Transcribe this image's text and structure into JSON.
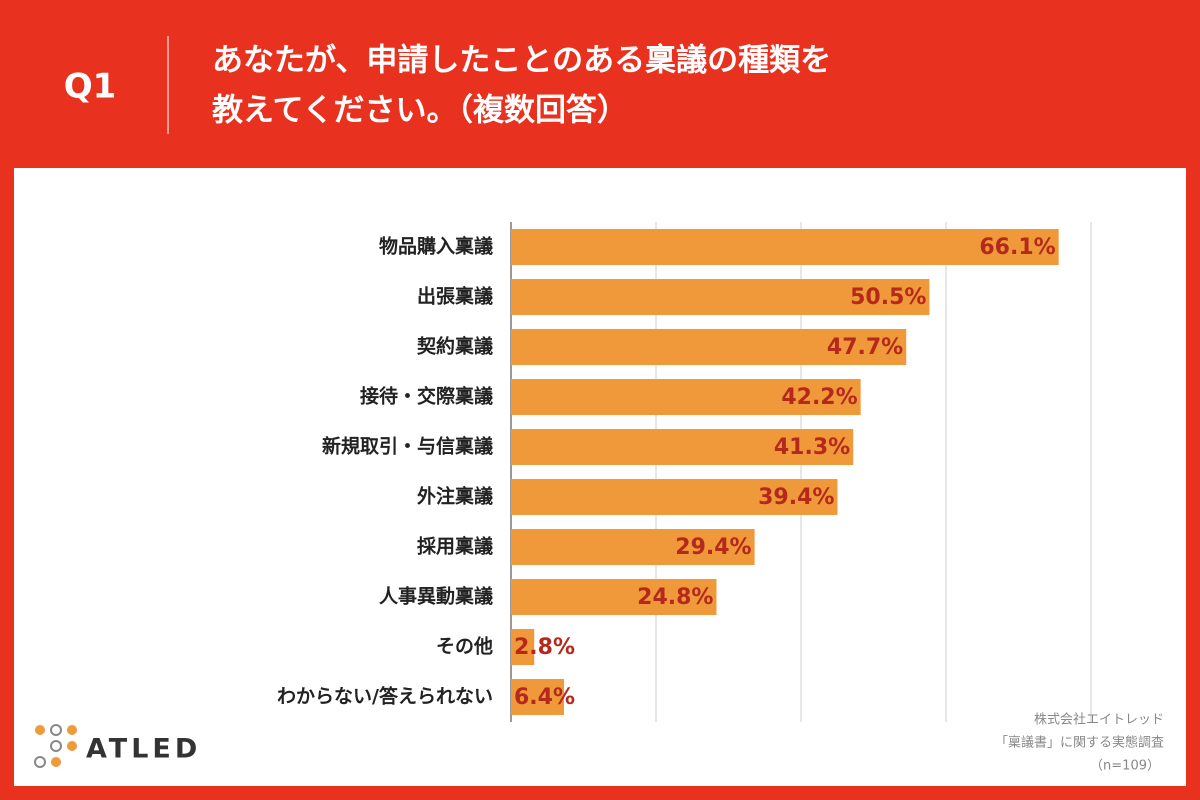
{
  "header": {
    "label": "Q1",
    "title_lines": [
      "あなたが、申請したことのある稟議の種類を",
      "教えてください。（複数回答）"
    ]
  },
  "chart_data": {
    "type": "bar",
    "orientation": "horizontal",
    "categories": [
      "物品購入稟議",
      "出張稟議",
      "契約稟議",
      "接待・交際稟議",
      "新規取引・与信稟議",
      "外注稟議",
      "採用稟議",
      "人事異動稟議",
      "その他",
      "わからない/答えられない"
    ],
    "values": [
      66.1,
      50.5,
      47.7,
      42.2,
      41.3,
      39.4,
      29.4,
      24.8,
      2.8,
      6.4
    ],
    "value_labels": [
      "66.1%",
      "50.5%",
      "47.7%",
      "42.2%",
      "41.3%",
      "39.4%",
      "29.4%",
      "24.8%",
      "2.8%",
      "6.4%"
    ],
    "color": "#f0993a",
    "xlim": [
      0,
      70
    ],
    "xticks": [
      0,
      17.5,
      35,
      52.5,
      70
    ],
    "grid": true
  },
  "footer": {
    "company": "株式会社エイトレッド",
    "survey": "「稟議書」に関する実態調査",
    "sample": "（n=109）",
    "logo": "ATLED"
  }
}
